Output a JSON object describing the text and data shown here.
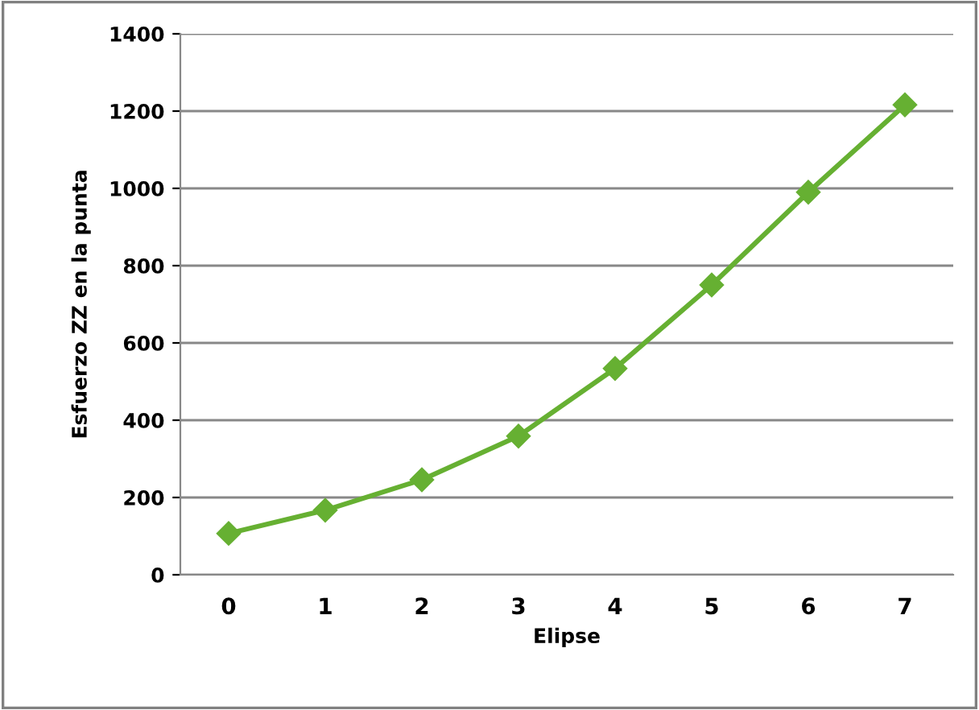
{
  "chart_data": {
    "type": "line",
    "xlabel": "Elipse",
    "ylabel": "Esfuerzo ZZ en la punta",
    "categories": [
      "0",
      "1",
      "2",
      "3",
      "4",
      "5",
      "6",
      "7"
    ],
    "series": [
      {
        "color": "#66b032",
        "values": [
          107,
          167,
          246,
          359,
          534,
          750,
          990,
          1216
        ]
      }
    ],
    "ylim": [
      0,
      1400
    ],
    "yticks": [
      0,
      200,
      400,
      600,
      800,
      1000,
      1200,
      1400
    ],
    "grid": "y",
    "marker": "diamond",
    "line_style": "solid"
  }
}
